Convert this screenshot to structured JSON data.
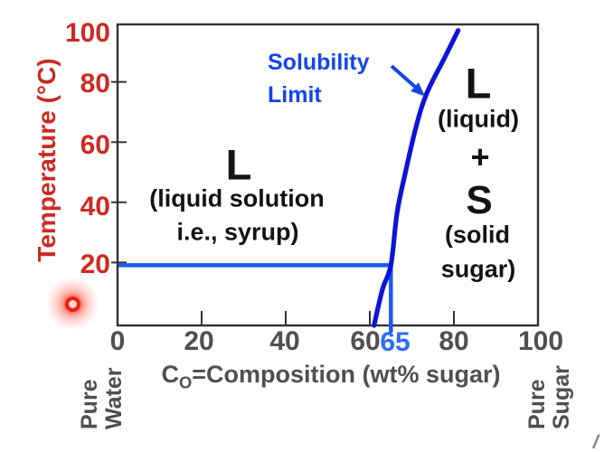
{
  "chart_data": {
    "type": "line",
    "title": "",
    "xlabel": "CO=Composition (wt% sugar)",
    "xlabel_parts": {
      "base": "C",
      "sub": "O",
      "rest": "=Composition (wt% sugar)"
    },
    "ylabel": "Temperature (°C)",
    "xlim": [
      0,
      100
    ],
    "ylim": [
      0,
      100
    ],
    "grid": "off",
    "x_tick_labels": [
      "0",
      "20",
      "40",
      "60",
      "80",
      "100"
    ],
    "y_tick_labels": [
      "100",
      "80",
      "60",
      "40",
      "20"
    ],
    "x_tick_marks": [
      20,
      40,
      60,
      80
    ],
    "y_tick_marks": [
      20,
      40,
      60,
      80
    ],
    "series": [
      {
        "name": "Solubility Limit",
        "color": "#0c15d6",
        "points": [
          [
            61,
            0
          ],
          [
            63,
            12
          ],
          [
            65,
            20
          ],
          [
            66.5,
            37.5
          ],
          [
            68.5,
            51
          ],
          [
            71,
            66
          ],
          [
            73.5,
            77
          ],
          [
            78,
            89.5
          ],
          [
            81,
            98
          ]
        ]
      }
    ],
    "tie_line": {
      "temperature_C": 20,
      "composition_wt_pct": 65,
      "label": "65",
      "color": "#1a5af0",
      "label_color": "#2e6cf5"
    },
    "annotation": {
      "line1": "Solubility",
      "line2": "Limit",
      "color": "#1545e8"
    },
    "regions": {
      "left": {
        "symbol": "L",
        "desc_line1": "(liquid solution",
        "desc_line2": "i.e., syrup)"
      },
      "right": {
        "symbol_liquid": "L",
        "desc_liquid": "(liquid)",
        "plus": "+",
        "symbol_solid": "S",
        "desc_solid_line1": "(solid",
        "desc_solid_line2": "sugar)"
      }
    },
    "axis_endpoints": {
      "left": [
        "Pure",
        "Water"
      ],
      "right": [
        "Pure",
        "Sugar"
      ]
    },
    "colors": {
      "y_axis_red": "#cc2a22",
      "tick_label_gray": "#4f4f4f",
      "axis_line": "#333333",
      "region_text_black": "#131313",
      "pointer_dot_red": "#ea2213"
    }
  },
  "misc": {
    "corner_mark": "/"
  }
}
